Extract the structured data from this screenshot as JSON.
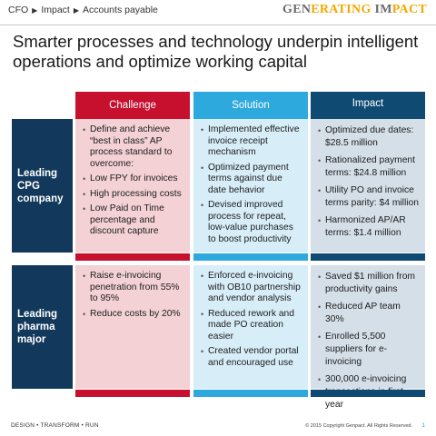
{
  "breadcrumb": [
    "CFO",
    "Impact",
    "Accounts payable"
  ],
  "brand": {
    "part1": "GEN",
    "part2": "ERATING",
    "part3": " IM",
    "part4": "PACT",
    "part5": ""
  },
  "title": "Smarter processes and technology underpin intelligent operations and optimize working capital",
  "columns": {
    "challenge": "Challenge",
    "solution": "Solution",
    "impact": "Impact"
  },
  "rows": [
    {
      "label": "Leading CPG company",
      "challenge": [
        "Define and achieve “best in class” AP process standard to overcome:",
        "Low FPY for invoices",
        "High processing costs",
        "Low Paid on Time percentage and discount capture"
      ],
      "solution": [
        "Implemented effective invoice receipt mechanism",
        "Optimized payment terms against due date behavior",
        "Devised improved process for repeat, low-value purchases to boost productivity"
      ],
      "impact": [
        "Optimized due dates: $28.5 million",
        "Rationalized payment terms: $24.8 million",
        "Utility PO and invoice terms parity: $4 million",
        "Harmonized AP/AR terms: $1.4 million"
      ]
    },
    {
      "label": "Leading pharma major",
      "challenge": [
        "Raise e-invoicing penetration from 55% to 95%",
        "Reduce costs by 20%"
      ],
      "solution": [
        "Enforced e-invoicing with OB10 partnership and vendor analysis",
        "Reduced rework and made PO creation easier",
        "Created vendor portal and encouraged use"
      ],
      "impact": [
        "Saved $1 million from productivity gains",
        "Reduced AP team 30%",
        "Enrolled 5,500 suppliers for e-invoicing",
        "300,000 e-invoicing transactions in first year"
      ]
    }
  ],
  "footer": {
    "left": "DESIGN • TRANSFORM • RUN",
    "copyright": "© 2015 Copyright Genpact. All Rights Reserved.",
    "page": "1"
  },
  "colors": {
    "challenge": "#c6102e",
    "solution": "#2ea9dd",
    "impact": "#0f4a73",
    "rowlabel": "#12395c",
    "brand_accent": "#f2a900"
  }
}
